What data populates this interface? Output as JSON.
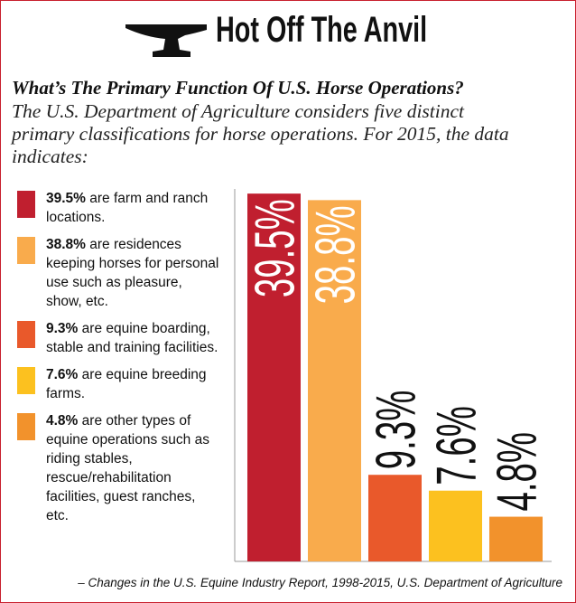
{
  "header": {
    "title": "Hot Off The Anvil"
  },
  "chart_data": {
    "type": "bar",
    "title": "What’s The Primary Function Of U.S. Horse Operations?",
    "subtitle": "The U.S. Department of Agriculture considers five distinct primary classifications for horse operations. For 2015, the data indicates:",
    "categories": [
      "are farm and ranch locations.",
      "are residences keeping horses for personal use such as pleasure, show, etc.",
      "are equine boarding, stable and training facilities.",
      "are equine breeding farms.",
      "are other types of equine operations such as riding stables, rescue/rehabilitation facilities, guest ranches, etc."
    ],
    "values": [
      39.5,
      38.8,
      9.3,
      7.6,
      4.8
    ],
    "value_labels": [
      "39.5%",
      "38.8%",
      "9.3%",
      "7.6%",
      "4.8%"
    ],
    "colors": [
      "#c01f2f",
      "#f9ab4c",
      "#e9592b",
      "#fcc11f",
      "#f2922c"
    ],
    "ylim": [
      0,
      40
    ],
    "source": "– Changes in the U.S. Equine Industry Report, 1998-2015, U.S. Department of Agriculture"
  }
}
